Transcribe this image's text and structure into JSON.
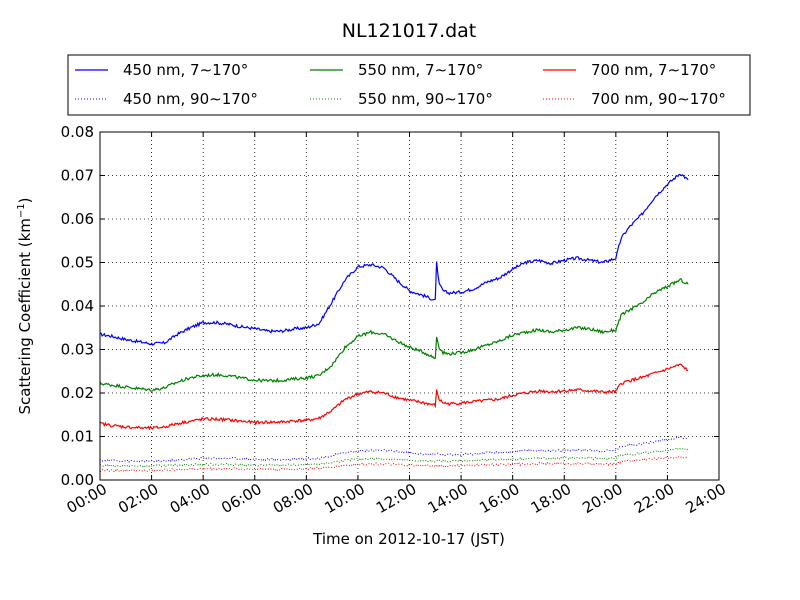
{
  "chart_data": {
    "type": "line",
    "title": "NL121017.dat",
    "xlabel": "Time on 2012-10-17 (JST)",
    "ylabel": "Scattering Coefficient (km",
    "ylabel_sup": "−1",
    "ylabel_end": ")",
    "xlim": [
      0,
      24
    ],
    "ylim": [
      0,
      0.08
    ],
    "grid": true,
    "legend_position": "top (above plot)",
    "x_unit": "hours",
    "x_ticks": [
      0,
      2,
      4,
      6,
      8,
      10,
      12,
      14,
      16,
      18,
      20,
      22,
      24
    ],
    "x_tick_labels": [
      "00:00",
      "02:00",
      "04:00",
      "06:00",
      "08:00",
      "10:00",
      "12:00",
      "14:00",
      "16:00",
      "18:00",
      "20:00",
      "22:00",
      "24:00"
    ],
    "y_ticks": [
      0,
      0.01,
      0.02,
      0.03,
      0.04,
      0.05,
      0.06,
      0.07,
      0.08
    ],
    "y_tick_labels": [
      "0.00",
      "0.01",
      "0.02",
      "0.03",
      "0.04",
      "0.05",
      "0.06",
      "0.07",
      "0.08"
    ],
    "x": [
      0,
      0.5,
      1,
      1.5,
      2,
      2.5,
      3,
      3.5,
      4,
      4.5,
      5,
      5.5,
      6,
      6.5,
      7,
      7.5,
      8,
      8.5,
      9,
      9.5,
      10,
      10.5,
      11,
      11.5,
      12,
      12.5,
      13,
      13.05,
      13.15,
      13.3,
      13.5,
      14,
      14.5,
      15,
      15.5,
      16,
      16.5,
      17,
      17.5,
      18,
      18.5,
      19,
      19.5,
      20,
      20.2,
      20.5,
      21,
      21.5,
      22,
      22.5,
      22.8
    ],
    "series": [
      {
        "name": "450 nm, 7∼170°",
        "color": "#0000ff",
        "style": "solid",
        "values": [
          0.0335,
          0.033,
          0.0323,
          0.0318,
          0.0313,
          0.0315,
          0.0335,
          0.035,
          0.0362,
          0.0362,
          0.0358,
          0.0352,
          0.0348,
          0.0342,
          0.0342,
          0.0347,
          0.035,
          0.036,
          0.041,
          0.046,
          0.049,
          0.0495,
          0.0488,
          0.046,
          0.0435,
          0.0425,
          0.0413,
          0.05,
          0.045,
          0.0435,
          0.043,
          0.0432,
          0.044,
          0.0455,
          0.0465,
          0.0485,
          0.05,
          0.0505,
          0.0498,
          0.0505,
          0.051,
          0.0505,
          0.05,
          0.051,
          0.0555,
          0.058,
          0.061,
          0.065,
          0.068,
          0.0705,
          0.069
        ]
      },
      {
        "name": "550 nm, 7∼170°",
        "color": "#008000",
        "style": "solid",
        "values": [
          0.0222,
          0.0218,
          0.0214,
          0.021,
          0.0207,
          0.0212,
          0.0225,
          0.0235,
          0.024,
          0.0242,
          0.024,
          0.0234,
          0.023,
          0.0228,
          0.0229,
          0.0232,
          0.0235,
          0.024,
          0.0265,
          0.0305,
          0.033,
          0.034,
          0.0335,
          0.032,
          0.0305,
          0.0295,
          0.028,
          0.033,
          0.0305,
          0.0293,
          0.029,
          0.0293,
          0.03,
          0.031,
          0.032,
          0.0333,
          0.034,
          0.0345,
          0.034,
          0.0345,
          0.035,
          0.0347,
          0.034,
          0.0345,
          0.0378,
          0.039,
          0.0405,
          0.043,
          0.0445,
          0.046,
          0.045
        ]
      },
      {
        "name": "700 nm, 7∼170°",
        "color": "#ff0000",
        "style": "solid",
        "values": [
          0.013,
          0.0125,
          0.0122,
          0.012,
          0.0119,
          0.0122,
          0.013,
          0.0135,
          0.014,
          0.014,
          0.0138,
          0.0135,
          0.0132,
          0.0133,
          0.0133,
          0.0136,
          0.0137,
          0.0142,
          0.016,
          0.0185,
          0.0198,
          0.0203,
          0.02,
          0.019,
          0.0183,
          0.0178,
          0.0172,
          0.0205,
          0.0185,
          0.0178,
          0.0175,
          0.0177,
          0.018,
          0.0183,
          0.0186,
          0.0195,
          0.02,
          0.0205,
          0.0203,
          0.0205,
          0.0207,
          0.0205,
          0.0202,
          0.0203,
          0.0222,
          0.0228,
          0.0235,
          0.0245,
          0.0255,
          0.0265,
          0.0252
        ]
      },
      {
        "name": "450 nm, 90∼170°",
        "color": "#0000ff",
        "style": "dotted",
        "values": [
          0.0045,
          0.0045,
          0.0044,
          0.0043,
          0.0043,
          0.0044,
          0.0046,
          0.0048,
          0.005,
          0.005,
          0.005,
          0.0049,
          0.0048,
          0.0047,
          0.0047,
          0.0048,
          0.0049,
          0.005,
          0.0056,
          0.0063,
          0.0067,
          0.0068,
          0.0068,
          0.0065,
          0.0062,
          0.006,
          0.0058,
          0.0062,
          0.0059,
          0.0058,
          0.0058,
          0.0059,
          0.006,
          0.0062,
          0.0063,
          0.0065,
          0.0067,
          0.0068,
          0.0067,
          0.0068,
          0.0069,
          0.0068,
          0.0067,
          0.0068,
          0.0078,
          0.008,
          0.0083,
          0.0088,
          0.0093,
          0.0098,
          0.0096
        ]
      },
      {
        "name": "550 nm, 90∼170°",
        "color": "#008000",
        "style": "dotted",
        "values": [
          0.0033,
          0.0033,
          0.0032,
          0.0032,
          0.0032,
          0.0033,
          0.0034,
          0.0035,
          0.0036,
          0.0036,
          0.0036,
          0.0035,
          0.0034,
          0.0034,
          0.0034,
          0.0035,
          0.0035,
          0.0036,
          0.004,
          0.0045,
          0.0048,
          0.0049,
          0.0049,
          0.0047,
          0.0045,
          0.0044,
          0.0043,
          0.0046,
          0.0044,
          0.0043,
          0.0043,
          0.0044,
          0.0045,
          0.0046,
          0.0047,
          0.0048,
          0.0049,
          0.005,
          0.0049,
          0.005,
          0.0051,
          0.005,
          0.0049,
          0.005,
          0.0058,
          0.0059,
          0.0061,
          0.0065,
          0.0068,
          0.0072,
          0.007
        ]
      },
      {
        "name": "700 nm, 90∼170°",
        "color": "#ff0000",
        "style": "dotted",
        "values": [
          0.0022,
          0.0022,
          0.0022,
          0.0022,
          0.0022,
          0.0023,
          0.0024,
          0.0025,
          0.0026,
          0.0026,
          0.0026,
          0.0025,
          0.0025,
          0.0025,
          0.0025,
          0.0025,
          0.0026,
          0.0027,
          0.003,
          0.0034,
          0.0036,
          0.0037,
          0.0037,
          0.0035,
          0.0034,
          0.0033,
          0.0032,
          0.0035,
          0.0033,
          0.0032,
          0.0032,
          0.0033,
          0.0034,
          0.0035,
          0.0035,
          0.0036,
          0.0037,
          0.0038,
          0.0037,
          0.0038,
          0.0038,
          0.0037,
          0.0036,
          0.0037,
          0.0043,
          0.0044,
          0.0046,
          0.0049,
          0.0051,
          0.0053,
          0.0052
        ]
      }
    ]
  }
}
